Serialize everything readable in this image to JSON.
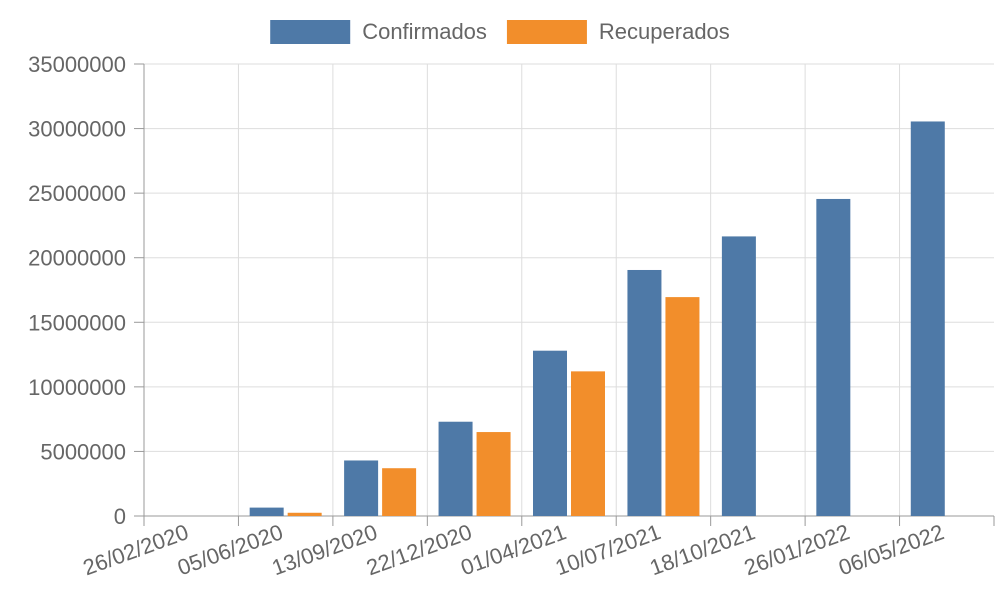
{
  "chart_data": {
    "type": "bar",
    "categories": [
      "26/02/2020",
      "05/06/2020",
      "13/09/2020",
      "22/12/2020",
      "01/04/2021",
      "10/07/2021",
      "18/10/2021",
      "26/01/2022",
      "06/05/2022"
    ],
    "series": [
      {
        "name": "Confirmados",
        "color": "#4e79a7",
        "values": [
          0,
          650000,
          4300000,
          7300000,
          12800000,
          19050000,
          21650000,
          24550000,
          30550000
        ]
      },
      {
        "name": "Recuperados",
        "color": "#f28e2b",
        "values": [
          0,
          250000,
          3700000,
          6500000,
          11200000,
          16950000,
          null,
          null,
          null
        ]
      }
    ],
    "title": "",
    "xlabel": "",
    "ylabel": "",
    "ylim": [
      0,
      35000000
    ],
    "yticks": [
      0,
      5000000,
      10000000,
      15000000,
      20000000,
      25000000,
      30000000,
      35000000
    ],
    "ytick_labels": [
      "0",
      "5000000",
      "10000000",
      "15000000",
      "20000000",
      "25000000",
      "30000000",
      "35000000"
    ],
    "grid": true,
    "legend_position": "top-center"
  }
}
